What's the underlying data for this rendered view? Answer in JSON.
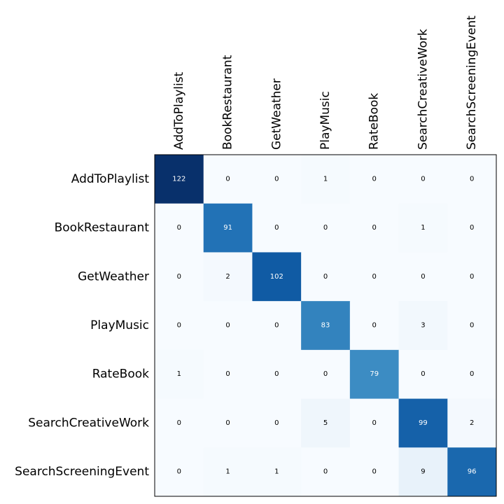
{
  "chart_data": {
    "type": "heatmap",
    "title": "",
    "xlabel": "",
    "ylabel": "",
    "row_labels": [
      "AddToPlaylist",
      "BookRestaurant",
      "GetWeather",
      "PlayMusic",
      "RateBook",
      "SearchCreativeWork",
      "SearchScreeningEvent"
    ],
    "col_labels": [
      "AddToPlaylist",
      "BookRestaurant",
      "GetWeather",
      "PlayMusic",
      "RateBook",
      "SearchCreativeWork",
      "SearchScreeningEvent"
    ],
    "values": [
      [
        122,
        0,
        0,
        1,
        0,
        0,
        0
      ],
      [
        0,
        91,
        0,
        0,
        0,
        1,
        0
      ],
      [
        0,
        2,
        102,
        0,
        0,
        0,
        0
      ],
      [
        0,
        0,
        0,
        83,
        0,
        3,
        0
      ],
      [
        1,
        0,
        0,
        0,
        79,
        0,
        0
      ],
      [
        0,
        0,
        0,
        5,
        0,
        99,
        2
      ],
      [
        0,
        1,
        1,
        0,
        0,
        9,
        96
      ]
    ],
    "colormap": "Blues",
    "colorbar": false,
    "grid": false,
    "label_position": "columns-top"
  }
}
